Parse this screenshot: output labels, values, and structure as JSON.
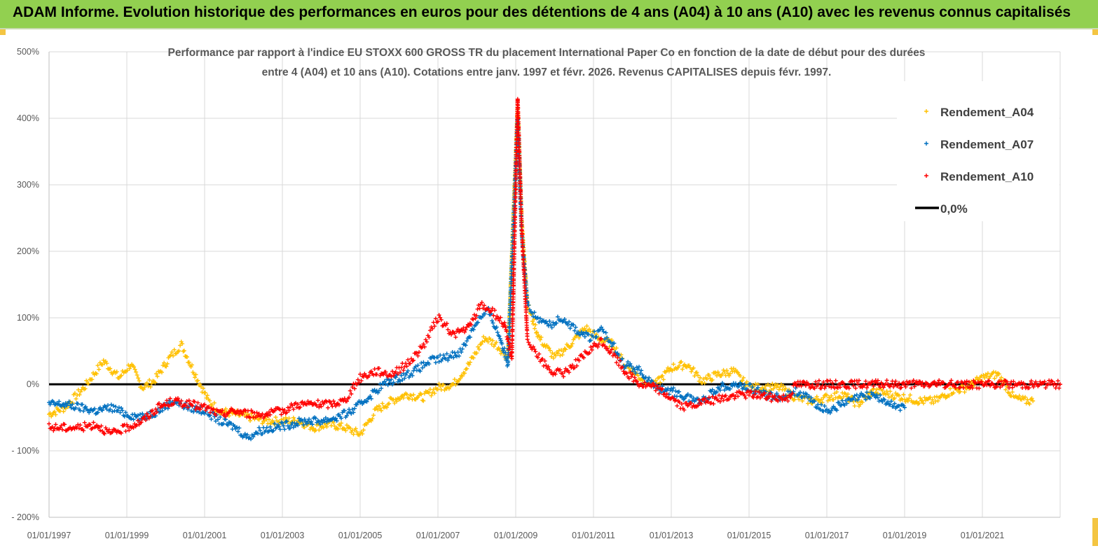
{
  "header": {
    "title": "ADAM Informe. Evolution historique des performances en euros pour des détentions de 4 ans (A04) à 10 ans (A10) avec les revenus connus capitalisés"
  },
  "chart_data": {
    "type": "scatter",
    "title_line1": "Performance par rapport à l'indice EU STOXX 600 GROSS TR  du placement International Paper Co en fonction de la date de début pour des durées",
    "title_line2": "entre 4 (A04) et 10 ans (A10). Cotations entre janv. 1997 et févr. 2026. Revenus CAPITALISES depuis févr. 1997.",
    "ylim": [
      -200,
      500
    ],
    "y_ticks": [
      {
        "value": 500,
        "label": "500%"
      },
      {
        "value": 400,
        "label": "400%"
      },
      {
        "value": 300,
        "label": "300%"
      },
      {
        "value": 200,
        "label": "200%"
      },
      {
        "value": 100,
        "label": "100%"
      },
      {
        "value": 0,
        "label": "0%"
      },
      {
        "value": -100,
        "label": "- 100%"
      },
      {
        "value": -200,
        "label": "- 200%"
      }
    ],
    "xlim": [
      1997.0,
      2023.0
    ],
    "x_ticks": [
      {
        "value": 1997,
        "label": "01/01/1997"
      },
      {
        "value": 1999,
        "label": "01/01/1999"
      },
      {
        "value": 2001,
        "label": "01/01/2001"
      },
      {
        "value": 2003,
        "label": "01/01/2003"
      },
      {
        "value": 2005,
        "label": "01/01/2005"
      },
      {
        "value": 2007,
        "label": "01/01/2007"
      },
      {
        "value": 2009,
        "label": "01/01/2009"
      },
      {
        "value": 2011,
        "label": "01/01/2011"
      },
      {
        "value": 2013,
        "label": "01/01/2013"
      },
      {
        "value": 2015,
        "label": "01/01/2015"
      },
      {
        "value": 2017,
        "label": "01/01/2017"
      },
      {
        "value": 2019,
        "label": "01/01/2019"
      },
      {
        "value": 2021,
        "label": "01/01/2021"
      }
    ],
    "grid": true,
    "legend_position": "top-right",
    "series": [
      {
        "name": "Rendement_A04",
        "color": "#ffc000",
        "marker": "plus",
        "x": [
          1997.0,
          1997.4,
          1997.9,
          1998.4,
          1998.8,
          1999.1,
          1999.4,
          1999.7,
          2000.1,
          2000.4,
          2000.8,
          2001.1,
          2001.4,
          2001.8,
          2002.2,
          2002.6,
          2003.0,
          2003.4,
          2003.8,
          2004.2,
          2004.6,
          2005.0,
          2005.4,
          2005.8,
          2006.2,
          2006.6,
          2007.0,
          2007.4,
          2007.8,
          2008.2,
          2008.5,
          2008.8,
          2009.05,
          2009.15,
          2009.3,
          2009.6,
          2010.0,
          2010.4,
          2010.8,
          2011.1,
          2011.5,
          2011.8,
          2012.2,
          2012.6,
          2013.0,
          2013.4,
          2013.8,
          2014.2,
          2014.6,
          2015.0,
          2015.4,
          2015.8,
          2016.2,
          2016.6,
          2017.0,
          2017.4,
          2017.8,
          2018.2,
          2018.6,
          2019.0,
          2019.4,
          2019.8,
          2020.2,
          2020.6,
          2021.0,
          2021.4,
          2021.8,
          2022.1,
          2022.3
        ],
        "y": [
          -45,
          -35,
          -5,
          35,
          10,
          30,
          -5,
          5,
          40,
          60,
          10,
          -25,
          -40,
          -45,
          -50,
          -55,
          -55,
          -55,
          -65,
          -60,
          -65,
          -75,
          -40,
          -25,
          -15,
          -20,
          -5,
          0,
          30,
          70,
          60,
          40,
          420,
          250,
          120,
          70,
          40,
          60,
          85,
          70,
          60,
          30,
          10,
          0,
          25,
          30,
          5,
          15,
          20,
          -5,
          -5,
          -5,
          -20,
          -25,
          -20,
          -15,
          -30,
          -10,
          -15,
          -20,
          -25,
          -25,
          -10,
          -5,
          10,
          15,
          -20,
          -25,
          -25
        ]
      },
      {
        "name": "Rendement_A07",
        "color": "#0070c0",
        "marker": "plus",
        "x": [
          1997.0,
          1997.4,
          1997.8,
          1998.2,
          1998.6,
          1999.0,
          1999.4,
          1999.8,
          2000.2,
          2000.6,
          2001.0,
          2001.4,
          2001.8,
          2002.1,
          2002.4,
          2002.8,
          2003.2,
          2003.6,
          2004.0,
          2004.4,
          2004.8,
          2005.2,
          2005.6,
          2006.0,
          2006.4,
          2006.8,
          2007.2,
          2007.6,
          2008.0,
          2008.3,
          2008.6,
          2008.8,
          2009.05,
          2009.15,
          2009.3,
          2009.6,
          2009.9,
          2010.2,
          2010.6,
          2010.9,
          2011.2,
          2011.5,
          2011.8,
          2012.2,
          2012.6,
          2013.0,
          2013.4,
          2013.8,
          2014.2,
          2014.6,
          2015.0,
          2015.4,
          2015.8,
          2016.2,
          2016.6,
          2017.0,
          2017.4,
          2017.8,
          2018.2,
          2018.6,
          2019.0
        ],
        "y": [
          -30,
          -30,
          -35,
          -40,
          -35,
          -45,
          -50,
          -40,
          -25,
          -35,
          -40,
          -55,
          -65,
          -80,
          -70,
          -65,
          -60,
          -55,
          -55,
          -50,
          -40,
          -20,
          0,
          10,
          20,
          35,
          40,
          50,
          95,
          110,
          70,
          30,
          400,
          230,
          120,
          95,
          90,
          100,
          80,
          70,
          80,
          60,
          30,
          20,
          -5,
          -10,
          -20,
          -25,
          -5,
          0,
          -5,
          -15,
          -20,
          -10,
          -25,
          -40,
          -30,
          -20,
          -15,
          -30,
          -35
        ]
      },
      {
        "name": "Rendement_A10",
        "color": "#ff0000",
        "marker": "plus",
        "x": [
          1997.0,
          1997.4,
          1997.8,
          1998.2,
          1998.6,
          1999.0,
          1999.4,
          1999.8,
          2000.2,
          2000.6,
          2001.0,
          2001.4,
          2001.8,
          2002.2,
          2002.6,
          2003.0,
          2003.4,
          2003.8,
          2004.2,
          2004.6,
          2005.0,
          2005.4,
          2005.8,
          2006.2,
          2006.6,
          2007.0,
          2007.4,
          2007.8,
          2008.1,
          2008.4,
          2008.7,
          2008.9,
          2009.05,
          2009.15,
          2009.3,
          2009.6,
          2009.9,
          2010.2,
          2010.6,
          2010.9,
          2011.2,
          2011.5,
          2011.8,
          2012.2,
          2012.6,
          2013.0,
          2013.3,
          2013.6,
          2014.0,
          2014.4,
          2014.8,
          2015.2,
          2015.6,
          2016.0,
          2016.2,
          2017.0,
          2018.0,
          2019.0,
          2020.0,
          2021.0,
          2022.0,
          2023.0
        ],
        "y": [
          -65,
          -65,
          -65,
          -60,
          -75,
          -65,
          -55,
          -35,
          -25,
          -30,
          -35,
          -45,
          -40,
          -45,
          -45,
          -40,
          -30,
          -30,
          -30,
          -25,
          10,
          20,
          15,
          30,
          55,
          100,
          75,
          85,
          120,
          110,
          90,
          40,
          430,
          240,
          70,
          40,
          20,
          15,
          35,
          50,
          65,
          45,
          20,
          0,
          -5,
          -20,
          -35,
          -30,
          -25,
          -20,
          -15,
          -15,
          -20,
          -20,
          0,
          0,
          0,
          0,
          0,
          0,
          0,
          0
        ]
      }
    ],
    "reference_line": {
      "name": "0,0%",
      "value": 0,
      "color": "#000000"
    }
  }
}
